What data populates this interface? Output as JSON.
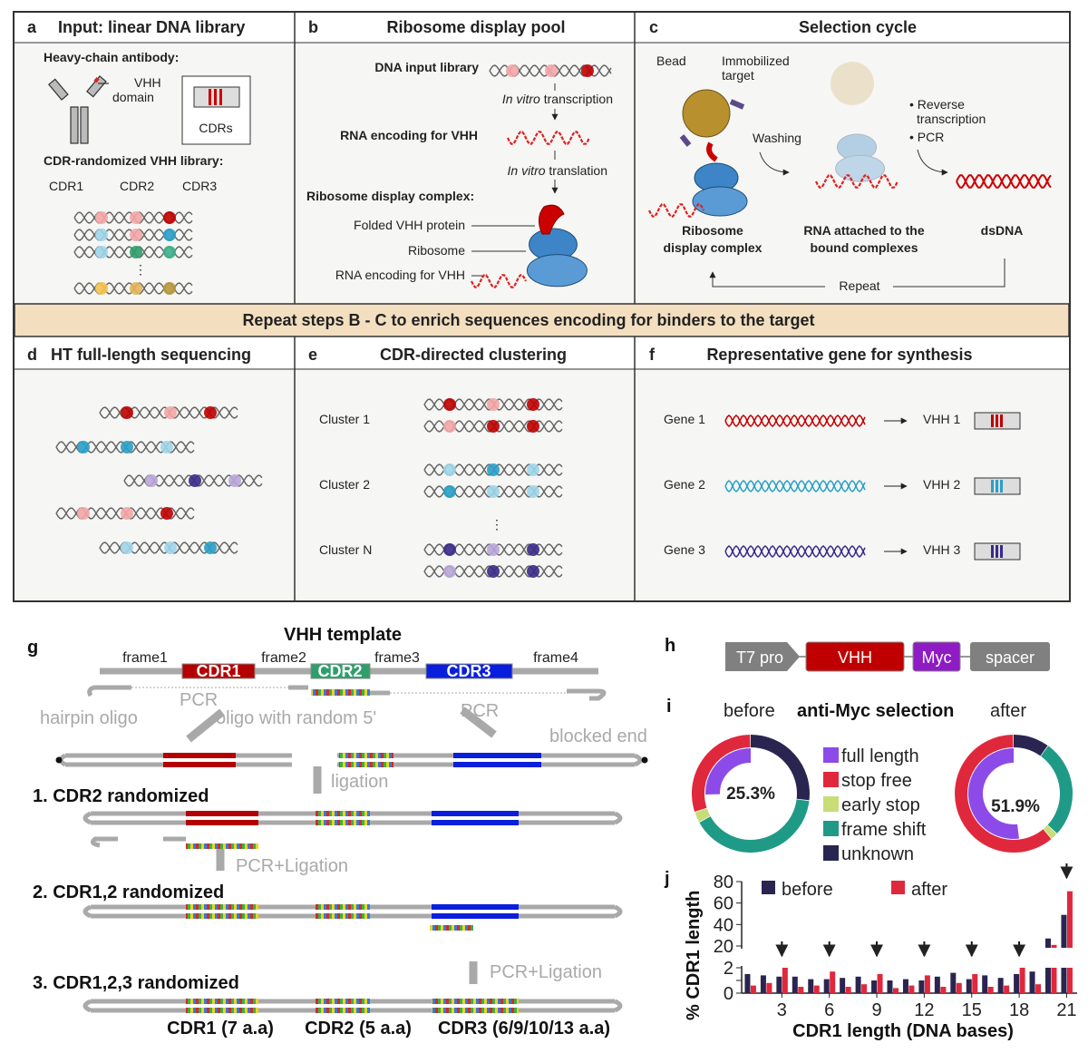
{
  "panels": {
    "a": {
      "letter": "a",
      "title": "Input: linear DNA library",
      "antibody_label": "Heavy-chain antibody:",
      "vhh": "VHH",
      "domain": "domain",
      "cdrs": "CDRs",
      "library_label": "CDR-randomized VHH library:",
      "cdr1": "CDR1",
      "cdr2": "CDR2",
      "cdr3": "CDR3",
      "ellipsis": "⋮"
    },
    "b": {
      "letter": "b",
      "title": "Ribosome display pool",
      "dna_input": "DNA input library",
      "invitro": "In vitro",
      "transcription": " transcription",
      "rna_encoding": "RNA encoding for VHH",
      "translation": " translation",
      "complex": "Ribosome display complex:",
      "folded": "Folded VHH protein",
      "ribosome": "Ribosome",
      "rna_label": "RNA encoding for VHH"
    },
    "c": {
      "letter": "c",
      "title": "Selection cycle",
      "bead": "Bead",
      "immobilized": "Immobilized",
      "target": "target",
      "washing": "Washing",
      "reverse": "• Reverse",
      "transcription": "transcription",
      "pcr": "• PCR",
      "rdc1": "Ribosome",
      "rdc2": "display complex",
      "rna1": "RNA attached to the",
      "rna2": "bound complexes",
      "dsdna": "dsDNA",
      "repeat": "Repeat"
    },
    "banner": "Repeat steps B - C to enrich sequences encoding for binders to the target",
    "d": {
      "letter": "d",
      "title": "HT full-length sequencing"
    },
    "e": {
      "letter": "e",
      "title": "CDR-directed clustering",
      "clusters": [
        "Cluster 1",
        "Cluster 2",
        "Cluster N"
      ],
      "ellipsis": "⋮"
    },
    "f": {
      "letter": "f",
      "title": "Representative gene for synthesis",
      "genes": [
        "Gene 1",
        "Gene 2",
        "Gene 3"
      ],
      "vhhs": [
        "VHH 1",
        "VHH 2",
        "VHH 3"
      ]
    },
    "g": {
      "letter": "g",
      "title": "VHH template",
      "frames": [
        "frame1",
        "frame2",
        "frame3",
        "frame4"
      ],
      "cdrs": [
        "CDR1",
        "CDR2",
        "CDR3"
      ],
      "hairpin": "hairpin oligo",
      "pcr": "PCR",
      "oligo": "oligo with random 5'",
      "blocked": "blocked end",
      "ligation": "ligation",
      "pcr_ligation": "PCR+Ligation",
      "step1": "1. CDR2 randomized",
      "step2": "2. CDR1,2 randomized",
      "step3": "3. CDR1,2,3 randomized",
      "bottom": [
        "CDR1 (7 a.a)",
        "CDR2 (5 a.a)",
        "CDR3 (6/9/10/13 a.a)"
      ]
    },
    "h": {
      "letter": "h",
      "parts": [
        "T7 pro",
        "VHH",
        "Myc",
        "spacer"
      ]
    },
    "i": {
      "letter": "i",
      "before": "before",
      "title": "anti-Myc selection",
      "after": "after"
    },
    "j": {
      "letter": "j"
    }
  },
  "colors": {
    "cdr1": "#b30000",
    "cdr2": "#2e9e6b",
    "cdr3": "#0a1fdc",
    "banner": "#f3dfc0",
    "myc": "#8e1bc4",
    "ribosome": "#3d85c6"
  },
  "chart_data": [
    {
      "type": "pie",
      "panel": "i",
      "legend": [
        "full length",
        "stop free",
        "early stop",
        "frame shift",
        "unknown"
      ],
      "legend_colors": [
        "#8c4be8",
        "#e0283c",
        "#c8dc78",
        "#1f9a86",
        "#2a2550"
      ],
      "legend_placement": "center",
      "series": [
        {
          "name": "before",
          "center_label": "25.3%",
          "inner_full_length": 25.3,
          "outer": {
            "unknown": 27,
            "frame shift": 40,
            "early stop": 3,
            "stop free": 30
          }
        },
        {
          "name": "after",
          "center_label": "51.9%",
          "inner_full_length": 51.9,
          "outer": {
            "unknown": 10,
            "frame shift": 27,
            "early stop": 2,
            "stop free": 61
          }
        }
      ]
    },
    {
      "type": "bar",
      "panel": "j",
      "xlabel": "CDR1 length (DNA bases)",
      "ylabel": "% CDR1 length",
      "categories": [
        1,
        2,
        3,
        4,
        5,
        6,
        7,
        8,
        9,
        10,
        11,
        12,
        13,
        14,
        15,
        16,
        17,
        18,
        19,
        20,
        21
      ],
      "xtick_labels": [
        "3",
        "6",
        "9",
        "12",
        "15",
        "18",
        "21"
      ],
      "ytick_labels_lower": [
        "0",
        "2"
      ],
      "ytick_labels_upper": [
        "20",
        "40",
        "60",
        "80"
      ],
      "ylim_lower": [
        0,
        2
      ],
      "ylim_upper": [
        20,
        80
      ],
      "broken_axis": true,
      "arrows_at": [
        3,
        6,
        9,
        12,
        15,
        18,
        21
      ],
      "legend_placement": "top",
      "series": [
        {
          "name": "before",
          "color": "#2a2550",
          "values": [
            1.5,
            1.4,
            1.3,
            1.3,
            1.1,
            1.1,
            1.2,
            1.3,
            1.0,
            1.0,
            1.1,
            1.0,
            1.3,
            1.6,
            1.1,
            1.4,
            1.2,
            1.5,
            1.7,
            27,
            49
          ]
        },
        {
          "name": "after",
          "color": "#e0283c",
          "values": [
            0.6,
            0.8,
            2.0,
            0.5,
            0.6,
            1.7,
            0.5,
            0.7,
            1.5,
            0.4,
            0.6,
            1.4,
            0.5,
            0.8,
            1.5,
            0.5,
            0.6,
            2.0,
            0.7,
            21,
            71
          ]
        }
      ]
    }
  ]
}
